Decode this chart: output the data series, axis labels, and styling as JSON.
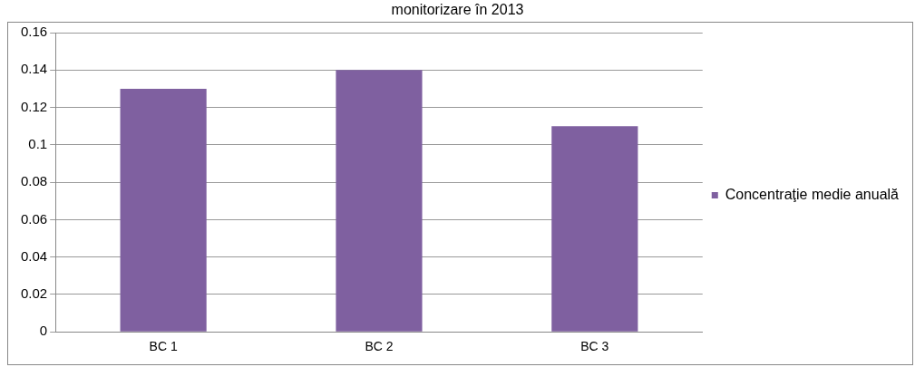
{
  "chart_data": {
    "type": "bar",
    "title": "monitorizare în 2013",
    "categories": [
      "BC 1",
      "BC 2",
      "BC 3"
    ],
    "series": [
      {
        "name": "Concentraţie medie anuală",
        "color": "#7f60a0",
        "values": [
          0.13,
          0.14,
          0.11
        ]
      }
    ],
    "ylim": [
      0,
      0.16
    ],
    "yticks": [
      0,
      0.02,
      0.04,
      0.06,
      0.08,
      0.1,
      0.12,
      0.14,
      0.16
    ],
    "grid": "y",
    "legend": "right"
  }
}
